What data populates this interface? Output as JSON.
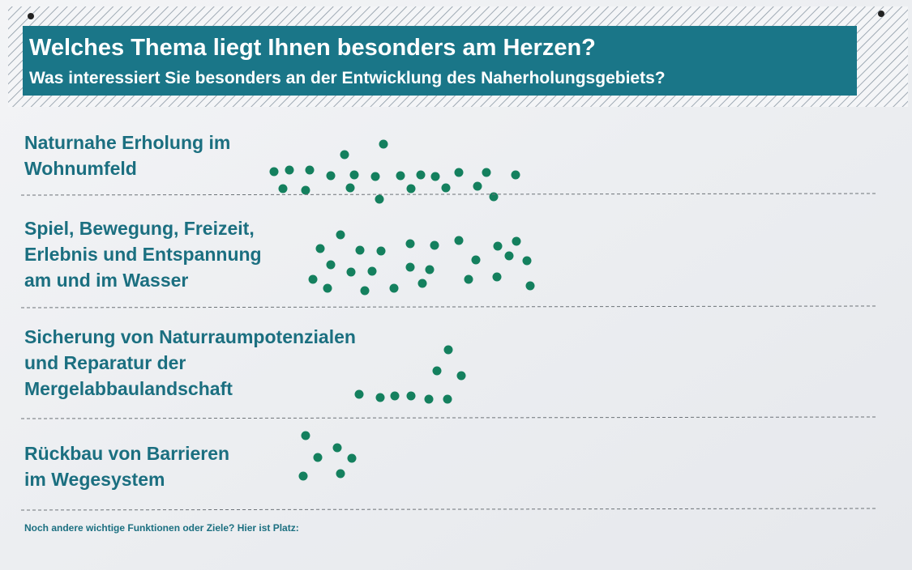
{
  "header": {
    "title": "Welches Thema liegt Ihnen besonders am Herzen?",
    "subtitle": "Was interessiert Sie besonders an der Entwicklung des Naherholungsgebiets?"
  },
  "topics": [
    {
      "lines": [
        "Naturnahe Erholung im",
        "Wohnumfeld"
      ]
    },
    {
      "lines": [
        "Spiel, Bewegung, Freizeit,",
        "Erlebnis und Entspannung",
        "am und im Wasser"
      ]
    },
    {
      "lines": [
        "Sicherung von Naturraumpotenzialen",
        "und Reparatur der",
        "Mergelabbaulandschaft"
      ]
    },
    {
      "lines": [
        "Rückbau von Barrieren",
        "im Wegesystem"
      ]
    }
  ],
  "footer": "Noch andere wichtige Funktionen oder Ziele? Hier ist Platz:"
}
